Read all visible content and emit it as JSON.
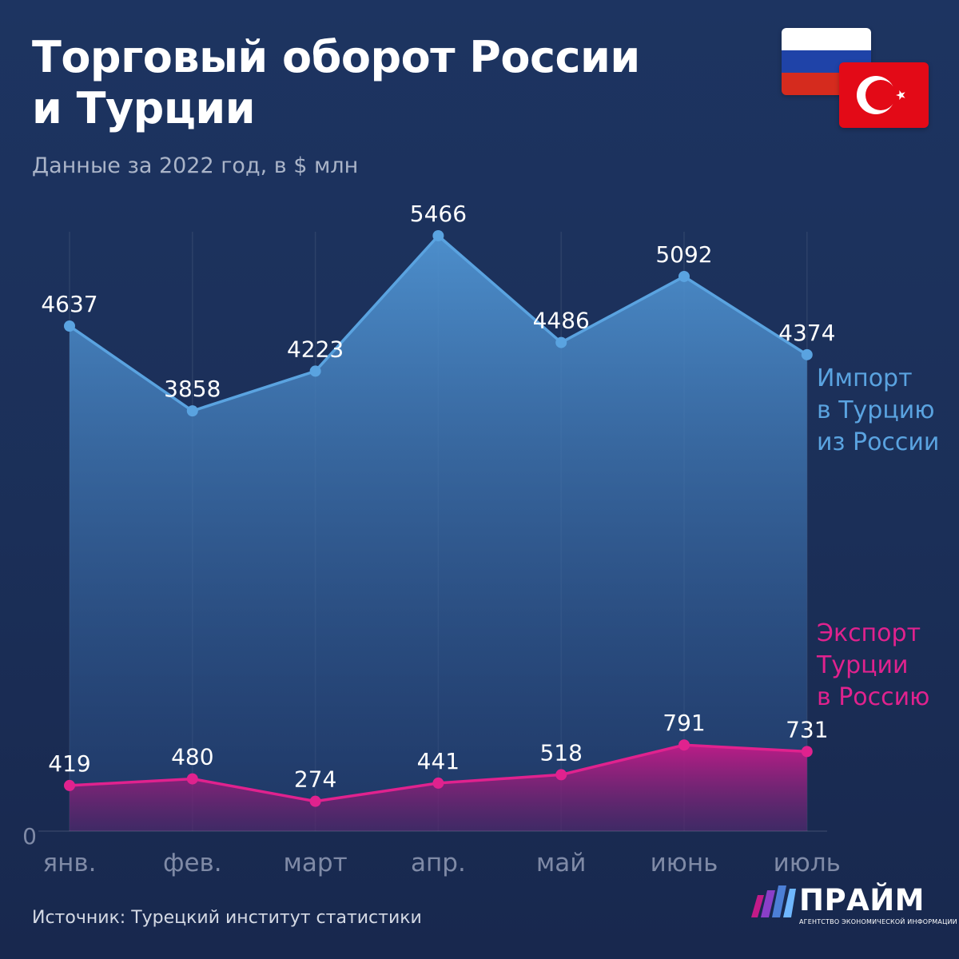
{
  "header": {
    "title_line1": "Торговый оборот России",
    "title_line2": "и Турции",
    "subtitle": "Данные за 2022 год, в $ млн"
  },
  "colors": {
    "import": "#5aa3e0",
    "export": "#e0228e",
    "background": "#1b2f58"
  },
  "chart_data": {
    "type": "area",
    "title": "Торговый оборот России и Турции",
    "subtitle": "Данные за 2022 год, в $ млн",
    "categories": [
      "янв.",
      "фев.",
      "март",
      "апр.",
      "май",
      "июнь",
      "июль"
    ],
    "series": [
      {
        "name": "Импорт в Турцию из России",
        "name_lines": [
          "Импорт",
          "в Турцию",
          "из России"
        ],
        "values": [
          4637,
          3858,
          4223,
          5466,
          4486,
          5092,
          4374
        ]
      },
      {
        "name": "Экспорт Турции в Россию",
        "name_lines": [
          "Экспорт",
          "Турции",
          "в Россию"
        ],
        "values": [
          419,
          480,
          274,
          441,
          518,
          791,
          731
        ]
      }
    ],
    "ylim": [
      0,
      5466
    ],
    "y_zero_label": "0",
    "grid": true
  },
  "footer": {
    "source": "Источник: Турецкий институт статистики",
    "logo_name": "ПРАЙМ",
    "logo_sub": "АГЕНТСТВО ЭКОНОМИЧЕСКОЙ ИНФОРМАЦИИ"
  }
}
